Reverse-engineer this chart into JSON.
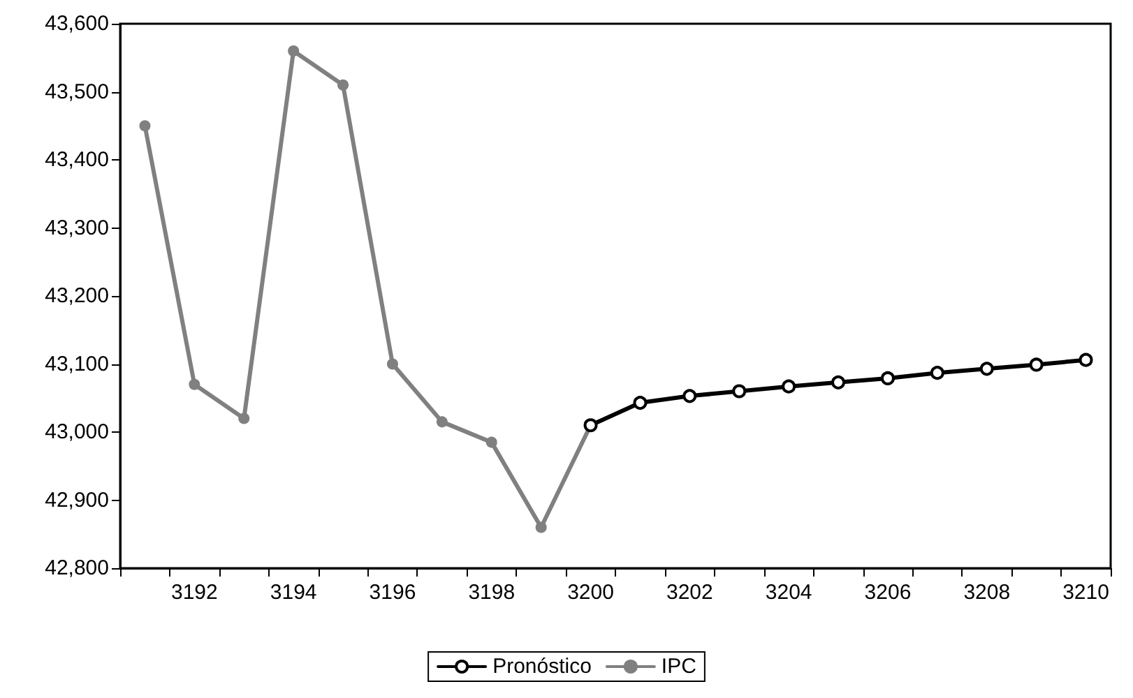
{
  "chart_data": {
    "type": "line",
    "categories": [
      null,
      "3192",
      null,
      "3194",
      null,
      "3196",
      null,
      "3198",
      null,
      "3200",
      null,
      "3202",
      null,
      "3204",
      null,
      "3206",
      null,
      "3208",
      null,
      "3210"
    ],
    "series": [
      {
        "name": "Pronóstico",
        "color": "#000000",
        "values": [
          null,
          null,
          null,
          null,
          null,
          null,
          null,
          null,
          null,
          43010,
          43043,
          43053,
          43060,
          43067,
          43073,
          43079,
          43087,
          43093,
          43099,
          43106
        ]
      },
      {
        "name": "IPC",
        "color": "#808080",
        "values": [
          43450,
          43070,
          43020,
          43560,
          43510,
          43100,
          43015,
          42985,
          42860,
          43010,
          null,
          null,
          null,
          null,
          null,
          null,
          null,
          null,
          null,
          null
        ]
      }
    ],
    "ylim": [
      42800,
      43600
    ],
    "yticks": [
      {
        "value": 42800,
        "label": "42,800"
      },
      {
        "value": 42900,
        "label": "42,900"
      },
      {
        "value": 43000,
        "label": "43,000"
      },
      {
        "value": 43100,
        "label": "43,100"
      },
      {
        "value": 43200,
        "label": "43,200"
      },
      {
        "value": 43300,
        "label": "43,300"
      },
      {
        "value": 43400,
        "label": "43,400"
      },
      {
        "value": 43500,
        "label": "43,500"
      },
      {
        "value": 43600,
        "label": "43,600"
      }
    ],
    "grid": false,
    "legend": "bottom",
    "marker": "circle",
    "line_style": "solid"
  }
}
